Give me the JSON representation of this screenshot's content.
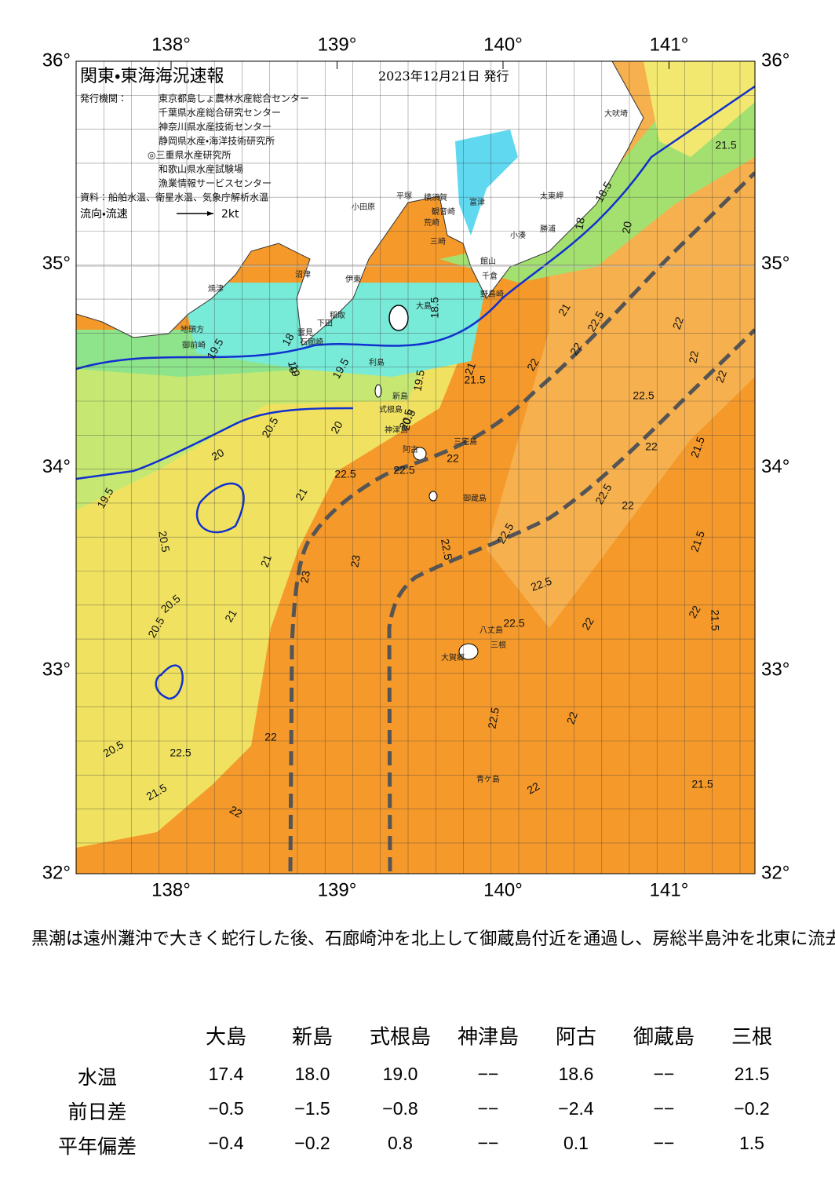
{
  "header": {
    "title": "関東・東海海況速報",
    "date": "2023年12月21日 発行",
    "issuer_label": "発行機関：",
    "issuers": [
      "東京都島しょ農林水産総合センター",
      "千葉県水産総合研究センター",
      "神奈川県水産技術センター",
      "静岡県水産・海洋技術研究所",
      "◎三重県水産研究所",
      "和歌山県水産試験場",
      "漁業情報サービスセンター"
    ],
    "source": "資料：船舶水温、衛星水温、気象庁解析水温",
    "legend_label": "流向・流速",
    "legend_speed": "2kt"
  },
  "map": {
    "lon_ticks": [
      {
        "value": 138,
        "label": "138°"
      },
      {
        "value": 139,
        "label": "139°"
      },
      {
        "value": 140,
        "label": "140°"
      },
      {
        "value": 141,
        "label": "141°"
      }
    ],
    "lat_ticks": [
      {
        "value": 36,
        "label": "36°"
      },
      {
        "value": 35,
        "label": "35°"
      },
      {
        "value": 34,
        "label": "34°"
      },
      {
        "value": 33,
        "label": "33°"
      },
      {
        "value": 32,
        "label": "32°"
      }
    ],
    "places": [
      "大吠埼",
      "太東岬",
      "勝浦",
      "小湊",
      "富津",
      "館山",
      "千倉",
      "野島崎",
      "観音崎",
      "横須賀",
      "荒崎",
      "三崎",
      "平塚",
      "小田原",
      "伊東",
      "稲取",
      "下田",
      "雲見",
      "石廊崎",
      "大島",
      "利島",
      "新島",
      "式根島",
      "神津島",
      "三宅島",
      "阿古",
      "御蔵島",
      "八丈島",
      "三根",
      "大賀郷",
      "青ケ島",
      "焼津",
      "御前崎",
      "地頭方",
      "沼津"
    ],
    "contour_labels": [
      "21.5",
      "18.5",
      "18",
      "20",
      "21",
      "21",
      "22",
      "22",
      "22.5",
      "22",
      "22",
      "22.5",
      "21.5",
      "22",
      "21.5",
      "19",
      "19.5",
      "20.5",
      "20",
      "20.5",
      "21",
      "19.5",
      "20.5",
      "20",
      "21",
      "23",
      "22.5",
      "23",
      "22.5",
      "22.5",
      "22.5",
      "22",
      "22",
      "21.5",
      "22",
      "21.5",
      "22",
      "22.5",
      "22.5",
      "22",
      "22",
      "22.5",
      "22.5",
      "21.5",
      "22",
      "20.5",
      "21",
      "20.5",
      "20.5",
      "21.5",
      "22",
      "22.5",
      "22",
      "18.5",
      "19.5",
      "19",
      "18",
      "19.5",
      "20.5"
    ]
  },
  "summary": "黒潮は遠州灘沖で大きく蛇行した後、石廊崎沖を北上して御蔵島付近を通過し、房総半島沖を北東に流去している模様です。",
  "table": {
    "columns": [
      "大島",
      "新島",
      "式根島",
      "神津島",
      "阿古",
      "御蔵島",
      "三根"
    ],
    "rows": [
      {
        "label": "水温",
        "values": [
          "17.4",
          "18.0",
          "19.0",
          "−−",
          "18.6",
          "−−",
          "21.5"
        ]
      },
      {
        "label": "前日差",
        "values": [
          "−0.5",
          "−1.5",
          "−0.8",
          "−−",
          "−2.4",
          "−−",
          "−0.2"
        ]
      },
      {
        "label": "平年偏差",
        "values": [
          "−0.4",
          "−0.2",
          "0.8",
          "−−",
          "0.1",
          "−−",
          "1.5"
        ]
      }
    ]
  }
}
